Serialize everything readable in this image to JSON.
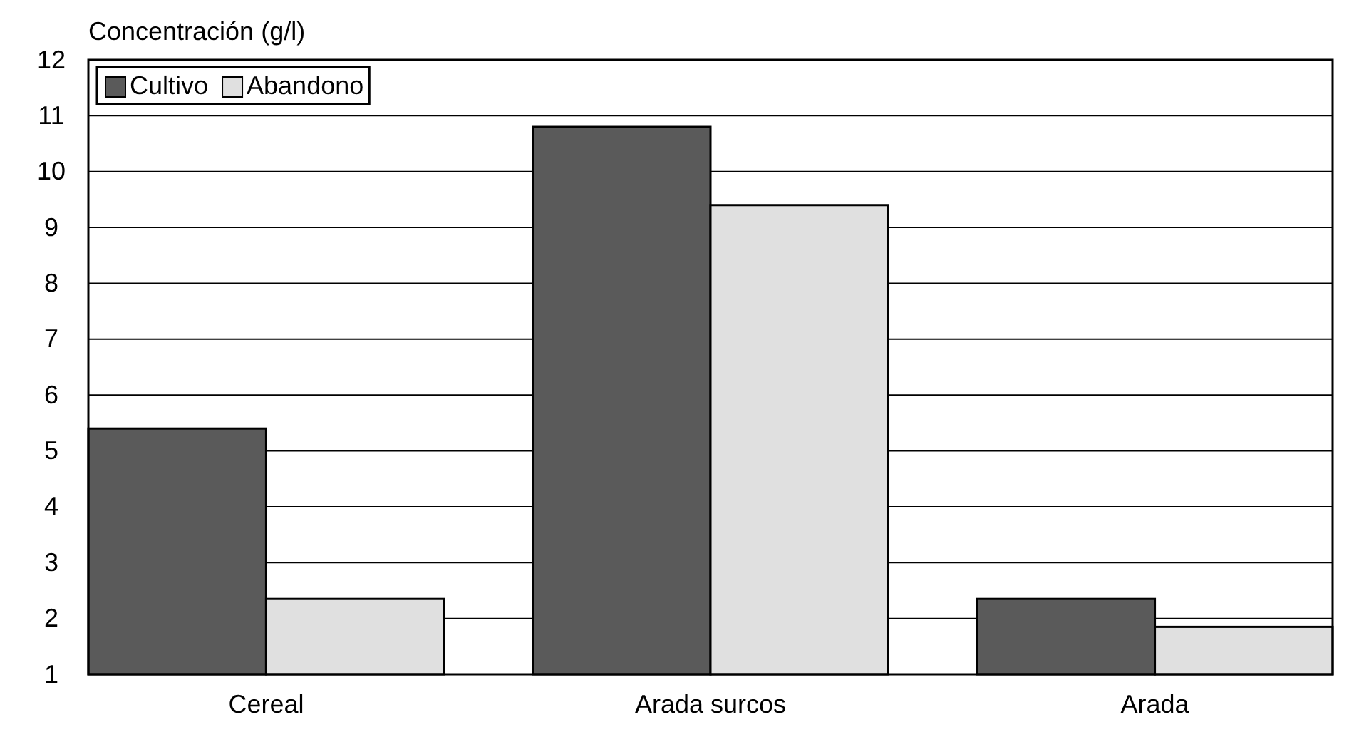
{
  "chart_data": {
    "type": "bar",
    "ylabel": "Concentración (g/l)",
    "categories": [
      "Cereal",
      "Arada surcos",
      "Arada"
    ],
    "series": [
      {
        "name": "Cultivo",
        "color": "#5a5a5a",
        "values": [
          5.4,
          10.8,
          2.35
        ]
      },
      {
        "name": "Abandono",
        "color": "#e0e0e0",
        "values": [
          2.35,
          9.4,
          1.85
        ]
      }
    ],
    "ylim": [
      1,
      12
    ],
    "yticks": [
      1,
      2,
      3,
      4,
      5,
      6,
      7,
      8,
      9,
      10,
      11,
      12
    ],
    "grid": "y",
    "legend": "top left"
  }
}
